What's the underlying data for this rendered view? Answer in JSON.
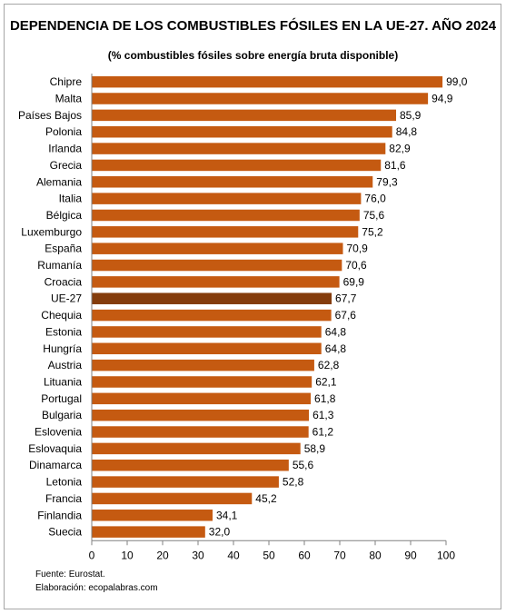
{
  "chart_data": {
    "type": "bar",
    "orientation": "horizontal",
    "title": "DEPENDENCIA DE LOS COMBUSTIBLES FÓSILES EN LA UE-27. AÑO 2024",
    "subtitle": "(% combustibles fósiles  sobre energía bruta disponible)",
    "categories": [
      "Chipre",
      "Malta",
      "Países Bajos",
      "Polonia",
      "Irlanda",
      "Grecia",
      "Alemania",
      "Italia",
      "Bélgica",
      "Luxemburgo",
      "España",
      "Rumanía",
      "Croacia",
      "UE-27",
      "Chequia",
      "Estonia",
      "Hungría",
      "Austria",
      "Lituania",
      "Portugal",
      "Bulgaria",
      "Eslovenia",
      "Eslovaquia",
      "Dinamarca",
      "Letonia",
      "Francia",
      "Finlandia",
      "Suecia"
    ],
    "values": [
      99.0,
      94.9,
      85.9,
      84.8,
      82.9,
      81.6,
      79.3,
      76.0,
      75.6,
      75.2,
      70.9,
      70.6,
      69.9,
      67.7,
      67.6,
      64.8,
      64.8,
      62.8,
      62.1,
      61.8,
      61.3,
      61.2,
      58.9,
      55.6,
      52.8,
      45.2,
      34.1,
      32.0
    ],
    "value_labels": [
      "99,0",
      "94,9",
      "85,9",
      "84,8",
      "82,9",
      "81,6",
      "79,3",
      "76,0",
      "75,6",
      "75,2",
      "70,9",
      "70,6",
      "69,9",
      "67,7",
      "67,6",
      "64,8",
      "64,8",
      "62,8",
      "62,1",
      "61,8",
      "61,3",
      "61,2",
      "58,9",
      "55,6",
      "52,8",
      "45,2",
      "34,1",
      "32,0"
    ],
    "highlight_category": "UE-27",
    "xlim": [
      0,
      100
    ],
    "xticks": [
      0,
      10,
      20,
      30,
      40,
      50,
      60,
      70,
      80,
      90,
      100
    ],
    "colors": {
      "bar": "#C55A11",
      "highlight": "#843C0C"
    },
    "grid": false,
    "legend": false
  },
  "footer": {
    "source": "Fuente: Eurostat.",
    "author": "Elaboración: ecopalabras.com"
  }
}
